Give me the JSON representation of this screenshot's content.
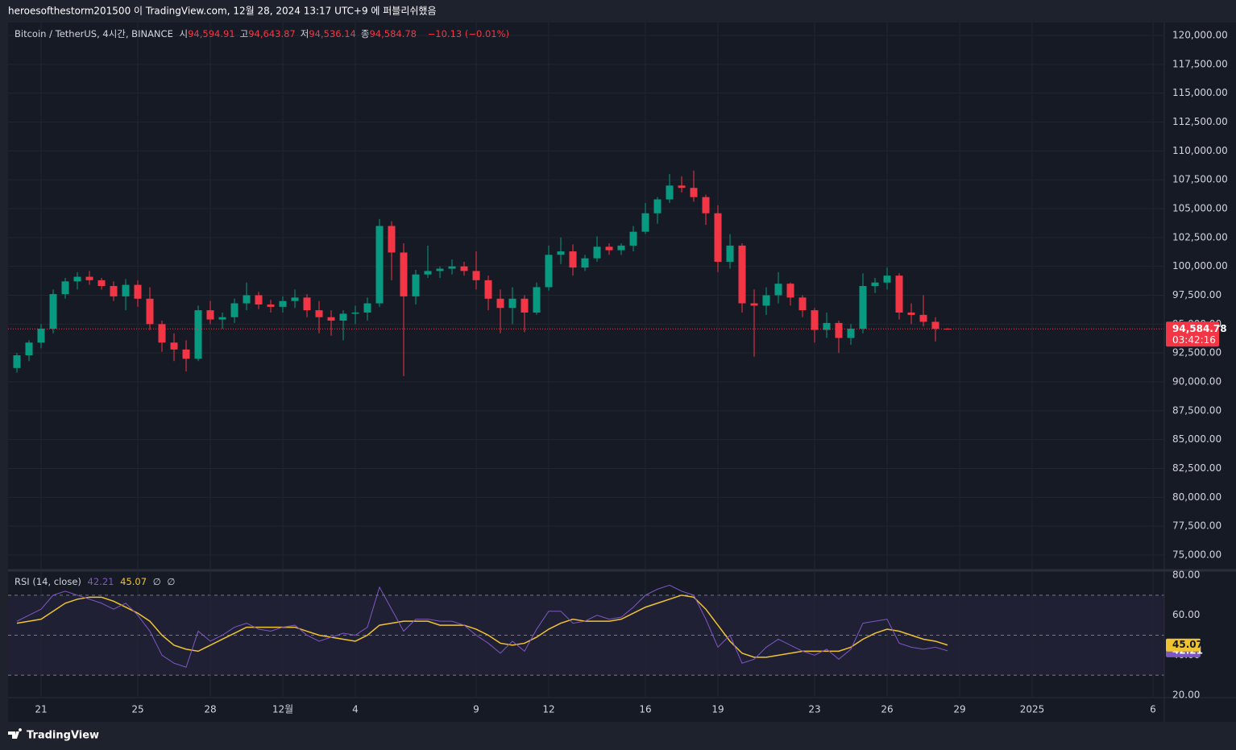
{
  "header": {
    "text": "heroesofthestorm201500 이 TradingView.com, 12월 28, 2024 13:17 UTC+9 에 퍼블리쉬했음"
  },
  "footer": {
    "brand": "TradingView"
  },
  "chart_data": [
    {
      "type": "candlestick",
      "title": "Bitcoin / TetherUS, 4시간, BINANCE",
      "legend": [
        {
          "label": "시",
          "value": "94,594.91"
        },
        {
          "label": "고",
          "value": "94,643.87"
        },
        {
          "label": "저",
          "value": "94,536.14"
        },
        {
          "label": "종",
          "value": "94,584.78"
        }
      ],
      "change": "−10.13 (−0.01%)",
      "last_price_label": "94,584.78",
      "countdown": "03:42:16",
      "colors": {
        "up": "#089981",
        "down": "#f23645"
      },
      "x": [
        "2024-11-20T00:00",
        "2024-11-20T12:00",
        "2024-11-21T00:00",
        "2024-11-21T12:00",
        "2024-11-22T00:00",
        "2024-11-22T12:00",
        "2024-11-23T00:00",
        "2024-11-23T12:00",
        "2024-11-24T00:00",
        "2024-11-24T12:00",
        "2024-11-25T00:00",
        "2024-11-25T12:00",
        "2024-11-26T00:00",
        "2024-11-26T12:00",
        "2024-11-27T00:00",
        "2024-11-27T12:00",
        "2024-11-28T00:00",
        "2024-11-28T12:00",
        "2024-11-29T00:00",
        "2024-11-29T12:00",
        "2024-11-30T00:00",
        "2024-11-30T12:00",
        "2024-12-01T00:00",
        "2024-12-01T12:00",
        "2024-12-02T00:00",
        "2024-12-02T12:00",
        "2024-12-03T00:00",
        "2024-12-03T12:00",
        "2024-12-04T00:00",
        "2024-12-04T12:00",
        "2024-12-05T00:00",
        "2024-12-05T12:00",
        "2024-12-06T00:00",
        "2024-12-06T12:00",
        "2024-12-07T00:00",
        "2024-12-07T12:00",
        "2024-12-08T00:00",
        "2024-12-08T12:00",
        "2024-12-09T00:00",
        "2024-12-09T12:00",
        "2024-12-10T00:00",
        "2024-12-10T12:00",
        "2024-12-11T00:00",
        "2024-12-11T12:00",
        "2024-12-12T00:00",
        "2024-12-12T12:00",
        "2024-12-13T00:00",
        "2024-12-13T12:00",
        "2024-12-14T00:00",
        "2024-12-14T12:00",
        "2024-12-15T00:00",
        "2024-12-15T12:00",
        "2024-12-16T00:00",
        "2024-12-16T12:00",
        "2024-12-17T00:00",
        "2024-12-17T12:00",
        "2024-12-18T00:00",
        "2024-12-18T12:00",
        "2024-12-19T00:00",
        "2024-12-19T12:00",
        "2024-12-20T00:00",
        "2024-12-20T12:00",
        "2024-12-21T00:00",
        "2024-12-21T12:00",
        "2024-12-22T00:00",
        "2024-12-22T12:00",
        "2024-12-23T00:00",
        "2024-12-23T12:00",
        "2024-12-24T00:00",
        "2024-12-24T12:00",
        "2024-12-25T00:00",
        "2024-12-25T12:00",
        "2024-12-26T00:00",
        "2024-12-26T12:00",
        "2024-12-27T00:00",
        "2024-12-27T12:00",
        "2024-12-28T00:00",
        "2024-12-28T12:00"
      ],
      "open": [
        91200,
        92300,
        93400,
        94600,
        97600,
        98700,
        99100,
        98800,
        98300,
        97400,
        98400,
        97200,
        95000,
        93400,
        92800,
        92000,
        96200,
        95400,
        95600,
        96800,
        97500,
        96700,
        96500,
        97000,
        97300,
        96200,
        95600,
        95300,
        95900,
        96000,
        96800,
        103500,
        101200,
        97400,
        99300,
        99600,
        99800,
        100000,
        99600,
        98800,
        97200,
        96400,
        97200,
        96000,
        98200,
        101000,
        101300,
        99900,
        100700,
        101700,
        101400,
        101800,
        103000,
        104600,
        105800,
        107000,
        106800,
        106000,
        104600,
        100400,
        101800,
        96800,
        96600,
        97500,
        98500,
        97300,
        96200,
        94500,
        95100,
        93800,
        94600,
        98300,
        98600,
        99200,
        96000,
        95800,
        95200,
        94594.91
      ],
      "high": [
        92500,
        93600,
        95000,
        98000,
        99000,
        99500,
        99600,
        99000,
        98700,
        98900,
        98800,
        98200,
        95300,
        94200,
        93600,
        96600,
        97000,
        96000,
        97200,
        98600,
        97800,
        97100,
        97400,
        98000,
        97600,
        97000,
        96200,
        96200,
        96600,
        97300,
        104100,
        103900,
        102000,
        99700,
        101800,
        100000,
        100600,
        100400,
        101300,
        99200,
        98000,
        98200,
        97500,
        98600,
        101800,
        102500,
        101900,
        101000,
        102600,
        102000,
        102000,
        103500,
        105500,
        106000,
        108000,
        107800,
        108300,
        106200,
        105300,
        102800,
        102000,
        98000,
        98200,
        99500,
        98600,
        97500,
        96400,
        96000,
        95300,
        95000,
        99400,
        99000,
        99900,
        99400,
        96800,
        97500,
        95600,
        94643.87
      ],
      "low": [
        90800,
        91800,
        92900,
        94200,
        97200,
        98000,
        98400,
        98000,
        97000,
        96200,
        96500,
        94500,
        92600,
        91800,
        90900,
        91800,
        95000,
        94600,
        95100,
        96200,
        96300,
        96000,
        96000,
        96400,
        95600,
        94200,
        94000,
        93600,
        95000,
        95300,
        96500,
        98800,
        90500,
        96700,
        99000,
        99000,
        99300,
        99200,
        98000,
        96200,
        94200,
        95000,
        94300,
        95800,
        97900,
        100200,
        99200,
        99600,
        100400,
        101000,
        101000,
        101300,
        102800,
        103700,
        105500,
        106400,
        105600,
        103600,
        99500,
        99800,
        96000,
        92200,
        95800,
        96800,
        96600,
        95600,
        93400,
        93800,
        92500,
        93200,
        94200,
        97700,
        98000,
        95400,
        95000,
        94800,
        93500,
        94536.14
      ],
      "close": [
        92300,
        93400,
        94600,
        97600,
        98700,
        99100,
        98800,
        98300,
        97400,
        98400,
        97200,
        95000,
        93400,
        92800,
        92000,
        96200,
        95400,
        95600,
        96800,
        97500,
        96700,
        96500,
        97000,
        97300,
        96200,
        95600,
        95300,
        95900,
        96000,
        96800,
        103500,
        101200,
        97400,
        99300,
        99600,
        99800,
        100000,
        99600,
        98800,
        97200,
        96400,
        97200,
        96000,
        98200,
        101000,
        101300,
        99900,
        100700,
        101700,
        101400,
        101800,
        103000,
        104600,
        105800,
        107000,
        106800,
        106000,
        104600,
        100400,
        101800,
        96800,
        96600,
        97500,
        98500,
        97300,
        96200,
        94500,
        95100,
        93800,
        94600,
        98300,
        98600,
        99200,
        96000,
        95800,
        95200,
        94594.91,
        94584.78
      ],
      "xlim": [
        "2024-11-19T15:12",
        "2025-01-06T11:12"
      ],
      "xticks": [
        {
          "value": "2024-11-21T00:00",
          "label": "21"
        },
        {
          "value": "2024-11-25T00:00",
          "label": "25"
        },
        {
          "value": "2024-11-28T00:00",
          "label": "28"
        },
        {
          "value": "2024-12-01T00:00",
          "label": "12월"
        },
        {
          "value": "2024-12-04T00:00",
          "label": "4"
        },
        {
          "value": "2024-12-09T00:00",
          "label": "9"
        },
        {
          "value": "2024-12-12T00:00",
          "label": "12"
        },
        {
          "value": "2024-12-16T00:00",
          "label": "16"
        },
        {
          "value": "2024-12-19T00:00",
          "label": "19"
        },
        {
          "value": "2024-12-23T00:00",
          "label": "23"
        },
        {
          "value": "2024-12-26T00:00",
          "label": "26"
        },
        {
          "value": "2024-12-29T00:00",
          "label": "29"
        },
        {
          "value": "2025-01-01T00:00",
          "label": "2025"
        },
        {
          "value": "2025-01-06T00:00",
          "label": "6"
        }
      ],
      "ylim": [
        75000,
        120000
      ],
      "yticks": [
        {
          "value": 75000,
          "label": "75,000.00"
        },
        {
          "value": 77500,
          "label": "77,500.00"
        },
        {
          "value": 80000,
          "label": "80,000.00"
        },
        {
          "value": 82500,
          "label": "82,500.00"
        },
        {
          "value": 85000,
          "label": "85,000.00"
        },
        {
          "value": 87500,
          "label": "87,500.00"
        },
        {
          "value": 90000,
          "label": "90,000.00"
        },
        {
          "value": 92500,
          "label": "92,500.00"
        },
        {
          "value": 95000,
          "label": "95,000.00"
        },
        {
          "value": 97500,
          "label": "97,500.00"
        },
        {
          "value": 100000,
          "label": "100,000.00"
        },
        {
          "value": 102500,
          "label": "102,500.00"
        },
        {
          "value": 105000,
          "label": "105,000.00"
        },
        {
          "value": 107500,
          "label": "107,500.00"
        },
        {
          "value": 110000,
          "label": "110,000.00"
        },
        {
          "value": 112500,
          "label": "112,500.00"
        },
        {
          "value": 115000,
          "label": "115,000.00"
        },
        {
          "value": 117500,
          "label": "117,500.00"
        },
        {
          "value": 120000,
          "label": "120,000.00"
        }
      ],
      "grid": true
    },
    {
      "type": "line",
      "title": "RSI (14, close)",
      "extras": [
        "∅",
        "∅"
      ],
      "series": [
        {
          "color": "#7e57c2",
          "label": "42.21",
          "values": [
            57,
            60,
            63,
            70,
            72,
            70,
            68,
            66,
            63,
            66,
            60,
            52,
            40,
            36,
            34,
            52,
            47,
            50,
            54,
            56,
            53,
            52,
            54,
            55,
            50,
            47,
            49,
            51,
            50,
            54,
            74,
            63,
            52,
            58,
            58,
            57,
            57,
            55,
            50,
            46,
            41,
            47,
            42,
            53,
            62,
            62,
            56,
            57,
            60,
            58,
            59,
            64,
            70,
            73,
            75,
            72,
            70,
            58,
            44,
            50,
            36,
            38,
            44,
            48,
            45,
            42,
            40,
            43,
            38,
            43,
            56,
            57,
            58,
            46,
            44,
            43,
            44,
            42.21
          ]
        },
        {
          "color": "#f0c330",
          "label": "45.07",
          "values": [
            56,
            57,
            58,
            62,
            66,
            68,
            69,
            69,
            67,
            64,
            61,
            57,
            50,
            45,
            43,
            42,
            45,
            48,
            51,
            54,
            54,
            54,
            54,
            54,
            52,
            50,
            49,
            48,
            47,
            50,
            55,
            56,
            57,
            57,
            57,
            55,
            55,
            55,
            53,
            50,
            46,
            45,
            46,
            49,
            53,
            56,
            58,
            57,
            57,
            57,
            58,
            61,
            64,
            66,
            68,
            70,
            69,
            63,
            55,
            47,
            41,
            39,
            39,
            40,
            41,
            42,
            42,
            42,
            42,
            44,
            48,
            51,
            53,
            52,
            50,
            48,
            47,
            45.07
          ]
        }
      ],
      "bands": [
        70,
        50,
        30
      ],
      "ylim": [
        20,
        80
      ],
      "yticks": [
        {
          "value": 20,
          "label": "20.00"
        },
        {
          "value": 40,
          "label": "40.00"
        },
        {
          "value": 60,
          "label": "60.00"
        },
        {
          "value": 80,
          "label": "80.00"
        }
      ]
    }
  ]
}
